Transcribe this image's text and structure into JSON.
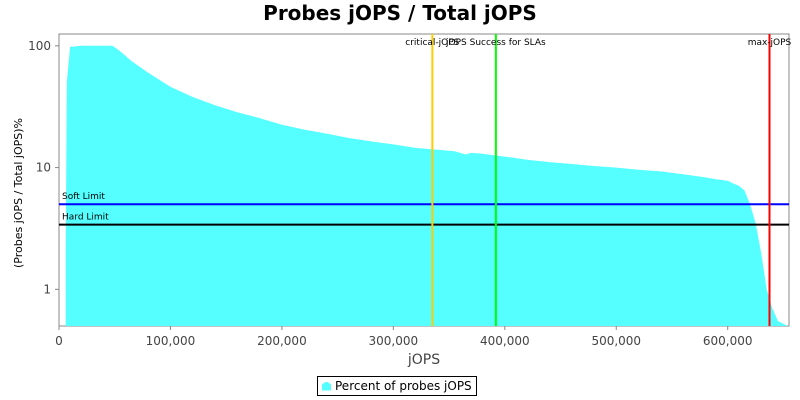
{
  "chart_data": {
    "type": "area",
    "title": "Probes jOPS / Total jOPS",
    "xlabel": "jOPS",
    "ylabel": "(Probes jOPS / Total jOPS)%",
    "xlim": [
      0,
      655000
    ],
    "ylim": [
      0.5,
      125
    ],
    "yscale": "log",
    "xticks": [
      0,
      100000,
      200000,
      300000,
      400000,
      500000,
      600000
    ],
    "xtick_labels": [
      "0",
      "100,000",
      "200,000",
      "300,000",
      "400,000",
      "500,000",
      "600,000"
    ],
    "yticks": [
      1,
      10,
      100
    ],
    "ytick_labels": [
      "1",
      "10",
      "100"
    ],
    "grid": false,
    "legend_position": "bottom",
    "series": [
      {
        "name": "Percent of probes jOPS",
        "color": "#55ffff",
        "x": [
          6000,
          7000,
          10000,
          20000,
          30000,
          40000,
          48000,
          55000,
          65000,
          80000,
          100000,
          120000,
          140000,
          160000,
          180000,
          200000,
          220000,
          240000,
          260000,
          280000,
          300000,
          320000,
          340000,
          355000,
          360000,
          365000,
          370000,
          380000,
          390000,
          400000,
          420000,
          440000,
          460000,
          480000,
          500000,
          520000,
          540000,
          560000,
          580000,
          590000,
          600000,
          605000,
          610000,
          615000,
          620000,
          625000,
          630000,
          635000,
          640000,
          645000,
          650000,
          654000
        ],
        "y": [
          2,
          50,
          98,
          100,
          100,
          100,
          100,
          90,
          75,
          60,
          46,
          38,
          32.5,
          28.5,
          25.5,
          22.5,
          20.5,
          19,
          17.5,
          16.4,
          15.5,
          14.5,
          14,
          13.6,
          13.2,
          12.8,
          13.2,
          13.0,
          12.6,
          12.3,
          11.6,
          11.1,
          10.7,
          10.3,
          10.0,
          9.6,
          9.3,
          8.8,
          8.3,
          8.0,
          7.8,
          7.4,
          7.1,
          6.5,
          5.0,
          3.5,
          2.0,
          1.0,
          0.7,
          0.55,
          0.52,
          0.5
        ]
      }
    ],
    "markers": [
      {
        "label": "critical-jOPS",
        "x": 335000,
        "color": "#ffcc00"
      },
      {
        "label": "jOPS Success for SLAs",
        "x": 392000,
        "color": "#00ff00"
      },
      {
        "label": "max-jOPS",
        "x": 637500,
        "color": "#ff0000"
      }
    ],
    "limits": [
      {
        "label": "Soft Limit",
        "y": 5.0,
        "color": "#0000ff"
      },
      {
        "label": "Hard Limit",
        "y": 3.4,
        "color": "#000000"
      }
    ]
  }
}
